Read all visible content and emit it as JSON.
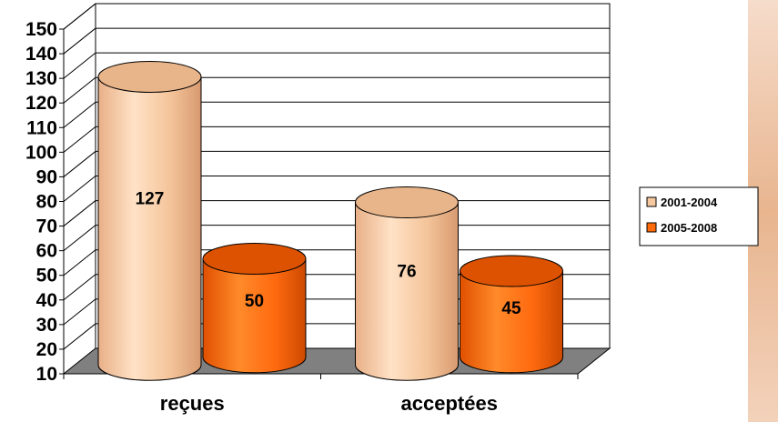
{
  "chart_data": {
    "type": "bar",
    "categories": [
      "reçues",
      "acceptées"
    ],
    "series": [
      {
        "name": "2001-2004",
        "values": [
          127,
          76
        ],
        "color": "#f5c8a0"
      },
      {
        "name": "2005-2008",
        "values": [
          50,
          45
        ],
        "color": "#ff6a0a"
      }
    ],
    "ylim": [
      10,
      150
    ],
    "yticks": [
      10,
      20,
      30,
      40,
      50,
      60,
      70,
      80,
      90,
      100,
      110,
      120,
      130,
      140,
      150
    ],
    "grid": true,
    "legend_position": "right",
    "three_d": true,
    "bar_shape": "cylinder",
    "floor_color": "#808080",
    "title": "",
    "xlabel": "",
    "ylabel": ""
  }
}
